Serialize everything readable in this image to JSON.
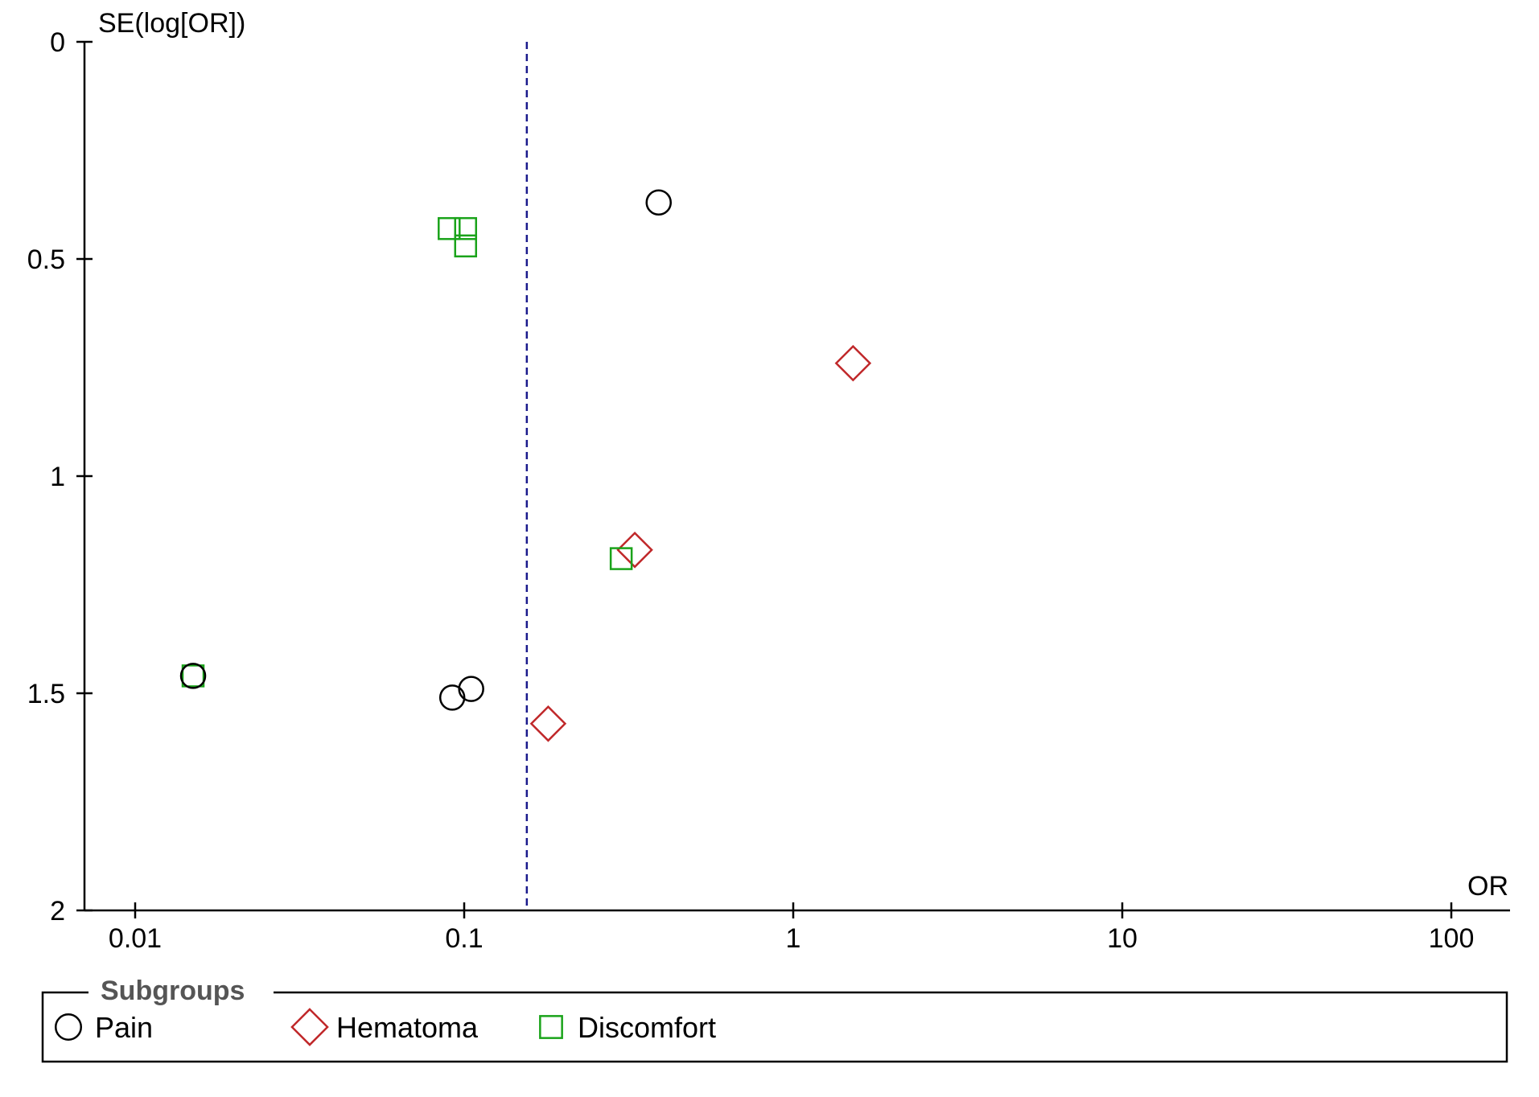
{
  "chart_data": {
    "type": "scatter",
    "ylabel": "SE(log[OR])",
    "xlabel": "OR",
    "x_scale": "log",
    "xlim": [
      0.0085,
      140
    ],
    "ylim": [
      0,
      2
    ],
    "y_inverted": true,
    "x_ticks": [
      {
        "value": 0.01,
        "label": "0.01"
      },
      {
        "value": 0.1,
        "label": "0.1"
      },
      {
        "value": 1,
        "label": "1"
      },
      {
        "value": 10,
        "label": "10"
      },
      {
        "value": 100,
        "label": "100"
      }
    ],
    "y_ticks": [
      {
        "value": 0,
        "label": "0"
      },
      {
        "value": 0.5,
        "label": "0.5"
      },
      {
        "value": 1,
        "label": "1"
      },
      {
        "value": 1.5,
        "label": "1.5"
      },
      {
        "value": 2,
        "label": "2"
      }
    ],
    "reference_line": {
      "x": 0.155,
      "style": "dashed",
      "color": "#1a1a8c"
    },
    "legend": {
      "title": "Subgroups",
      "placement": "bottom"
    },
    "series": [
      {
        "name": "Pain",
        "marker": "circle",
        "color": "#000000",
        "points": [
          {
            "x": 0.39,
            "y": 0.37
          },
          {
            "x": 0.015,
            "y": 1.46
          },
          {
            "x": 0.092,
            "y": 1.51
          },
          {
            "x": 0.105,
            "y": 1.49
          }
        ]
      },
      {
        "name": "Hematoma",
        "marker": "diamond",
        "color": "#c0282a",
        "points": [
          {
            "x": 1.52,
            "y": 0.74
          },
          {
            "x": 0.33,
            "y": 1.17
          },
          {
            "x": 0.18,
            "y": 1.57
          }
        ]
      },
      {
        "name": "Discomfort",
        "marker": "square",
        "color": "#1aa31a",
        "points": [
          {
            "x": 0.09,
            "y": 0.43
          },
          {
            "x": 0.101,
            "y": 0.43
          },
          {
            "x": 0.101,
            "y": 0.47
          },
          {
            "x": 0.3,
            "y": 1.19
          },
          {
            "x": 0.015,
            "y": 1.46
          }
        ]
      }
    ]
  }
}
